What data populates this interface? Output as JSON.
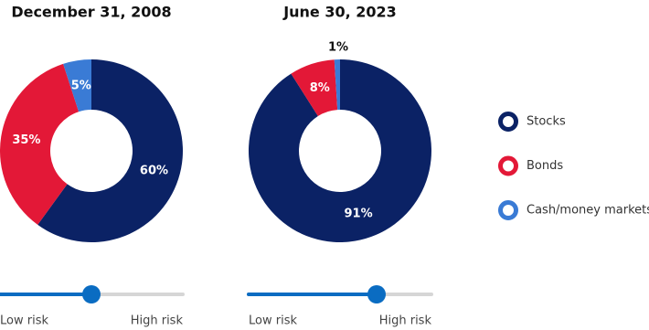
{
  "chart_data": [
    {
      "type": "pie",
      "title": "December 31, 2008",
      "categories": [
        "Stocks",
        "Bonds",
        "Cash/money markets"
      ],
      "values": [
        60,
        35,
        5
      ],
      "value_labels": [
        "60%",
        "35%",
        "5%"
      ],
      "colors": [
        "#0b2265",
        "#e31837",
        "#3a7bd5"
      ]
    },
    {
      "type": "pie",
      "title": "June 30, 2023",
      "categories": [
        "Stocks",
        "Bonds",
        "Cash/money markets"
      ],
      "values": [
        91,
        8,
        1
      ],
      "value_labels": [
        "91%",
        "8%",
        "1%"
      ],
      "colors": [
        "#0b2265",
        "#e31837",
        "#3a7bd5"
      ]
    }
  ],
  "sliders": [
    {
      "low": "Low risk",
      "high": "High risk"
    },
    {
      "low": "Low risk",
      "high": "High risk"
    }
  ]
}
